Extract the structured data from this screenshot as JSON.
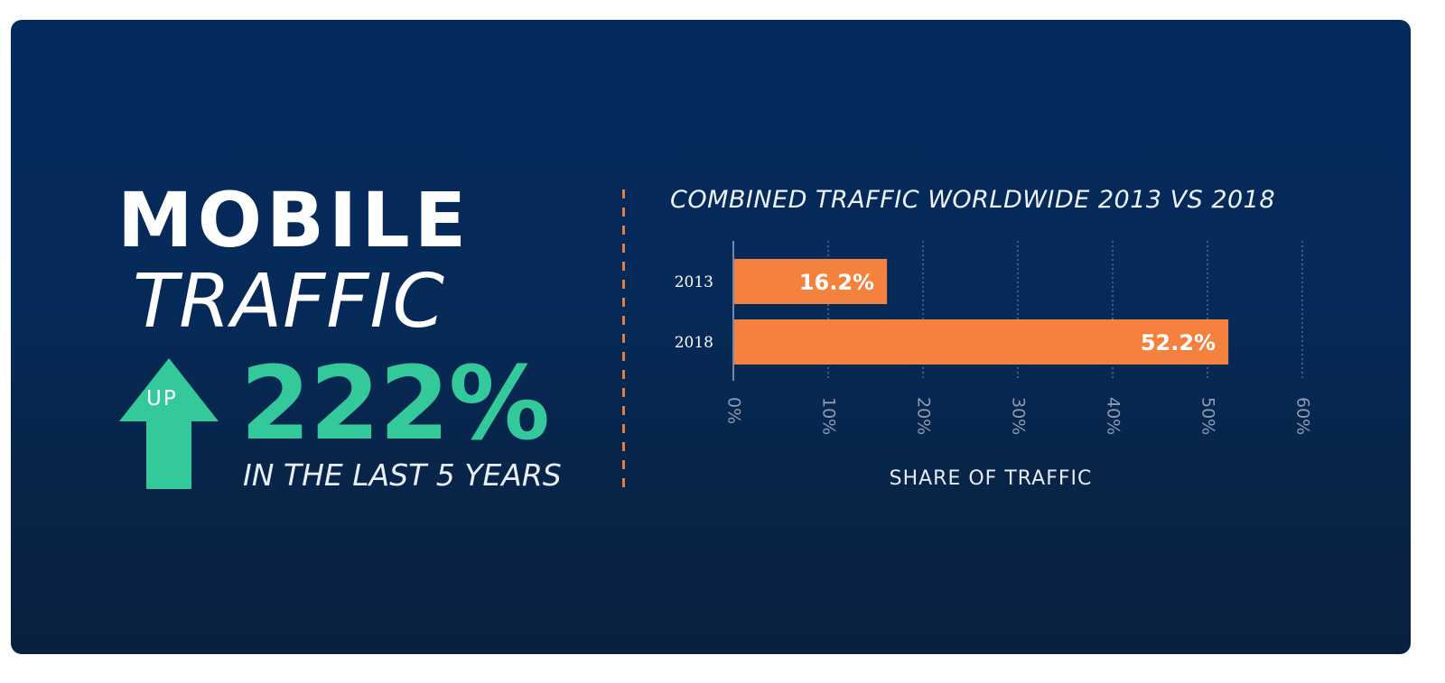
{
  "headline": {
    "line1": "MOBILE",
    "line2": "TRAFFIC",
    "arrow_label": "UP",
    "growth": "222%",
    "subtitle": "IN THE LAST 5 YEARS"
  },
  "colors": {
    "bar": "#f5813f",
    "accent_green": "#34c99a",
    "divider": "#e07d3f"
  },
  "chart_data": {
    "type": "bar",
    "orientation": "horizontal",
    "title": "COMBINED TRAFFIC WORLDWIDE 2013 VS 2018",
    "categories": [
      "2013",
      "2018"
    ],
    "values": [
      16.2,
      52.2
    ],
    "data_labels": [
      "16.2%",
      "52.2%"
    ],
    "xlabel": "SHARE OF TRAFFIC",
    "ylabel": "",
    "xlim": [
      0,
      60
    ],
    "x_ticks": [
      "0%",
      "10%",
      "20%",
      "30%",
      "40%",
      "50%",
      "60%"
    ],
    "x_tick_values": [
      0,
      10,
      20,
      30,
      40,
      50,
      60
    ],
    "grid": true
  }
}
